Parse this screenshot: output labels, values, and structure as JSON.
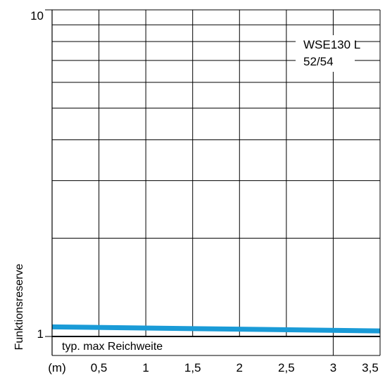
{
  "chart_data": {
    "type": "line",
    "scale": {
      "y": "log"
    },
    "ylim": [
      1,
      10
    ],
    "xlim": [
      0,
      3.5
    ],
    "ytick_labels": [
      "1",
      "10"
    ],
    "xlabel": "(m)",
    "x_tick_labels": [
      "0,5",
      "1",
      "1,5",
      "2",
      "2,5",
      "3",
      "3,5"
    ],
    "ylabel": "Funktionsreserve",
    "grid": true,
    "annotation": [
      "WSE130 L",
      "52/54"
    ],
    "range_label": "typ. max Reichweite",
    "range_end": 3.5,
    "series": [
      {
        "color": "#1a9bd7",
        "x": [
          0,
          3.5
        ],
        "y": [
          1.07,
          1.04
        ]
      }
    ]
  }
}
